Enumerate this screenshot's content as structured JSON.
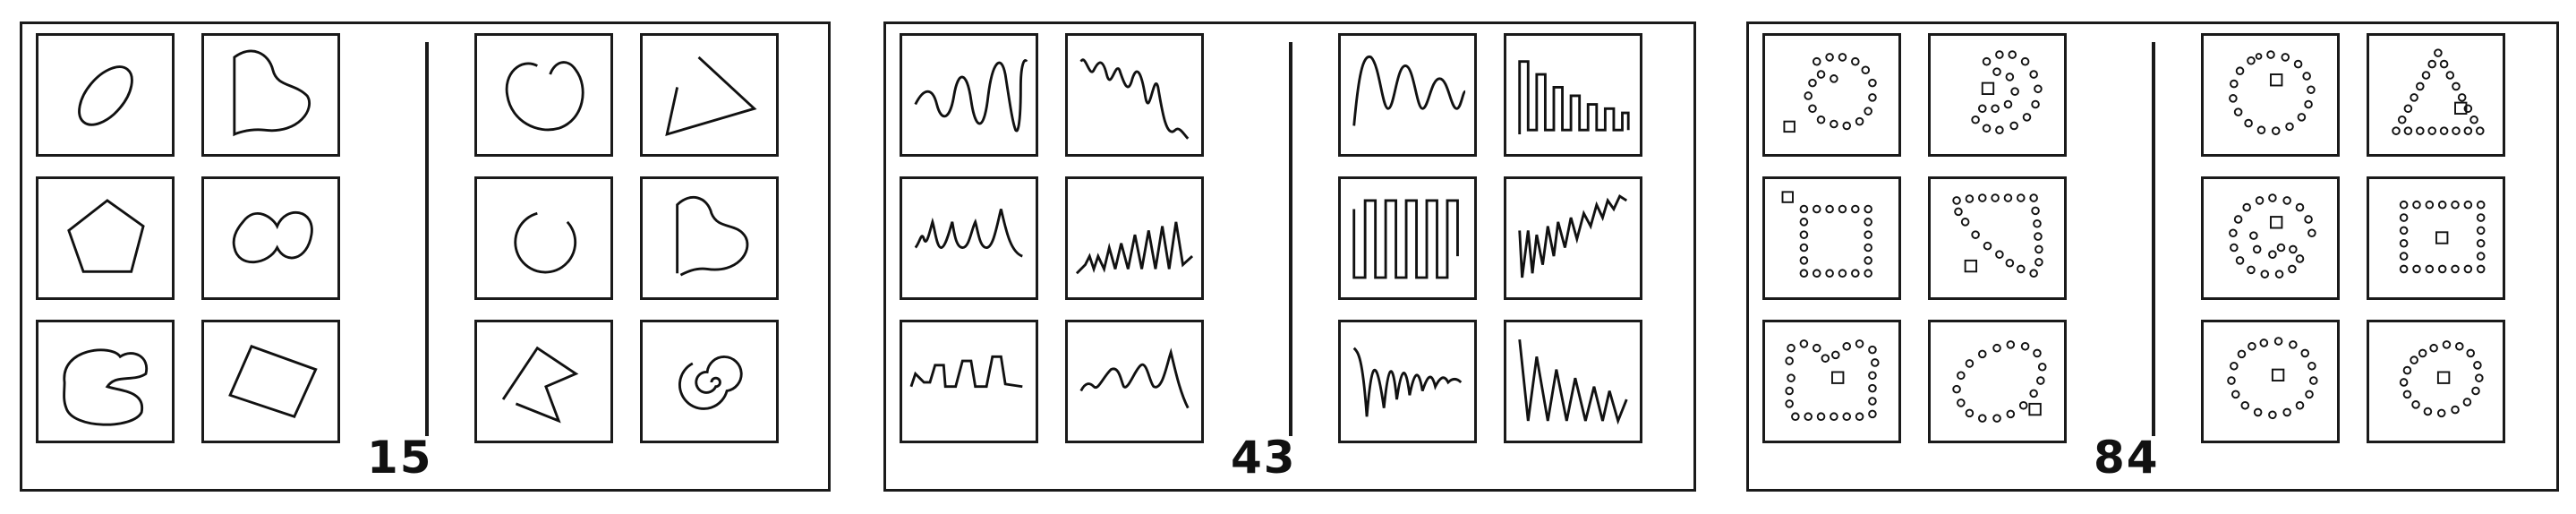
{
  "panels": [
    {
      "problem_number": "15",
      "theme": "closed curves vs open figures"
    },
    {
      "problem_number": "43",
      "theme": "waves"
    },
    {
      "problem_number": "84",
      "theme": "dot figures with square"
    }
  ]
}
